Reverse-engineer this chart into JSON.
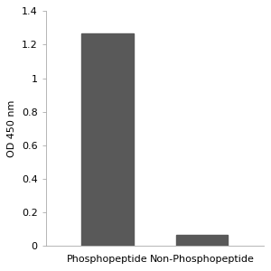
{
  "categories": [
    "Phosphopeptide",
    "Non-Phosphopeptide"
  ],
  "values": [
    1.265,
    0.065
  ],
  "bar_color": "#595959",
  "ylabel": "OD 450 nm",
  "ylim": [
    0,
    1.4
  ],
  "yticks": [
    0,
    0.2,
    0.4,
    0.6,
    0.8,
    1.0,
    1.2,
    1.4
  ],
  "ytick_labels": [
    "0",
    "0.2",
    "0.4",
    "0.6",
    "0.8",
    "1",
    "1.2",
    "1.4"
  ],
  "bar_width": 0.55,
  "background_color": "#ffffff",
  "tick_fontsize": 8,
  "label_fontsize": 8
}
